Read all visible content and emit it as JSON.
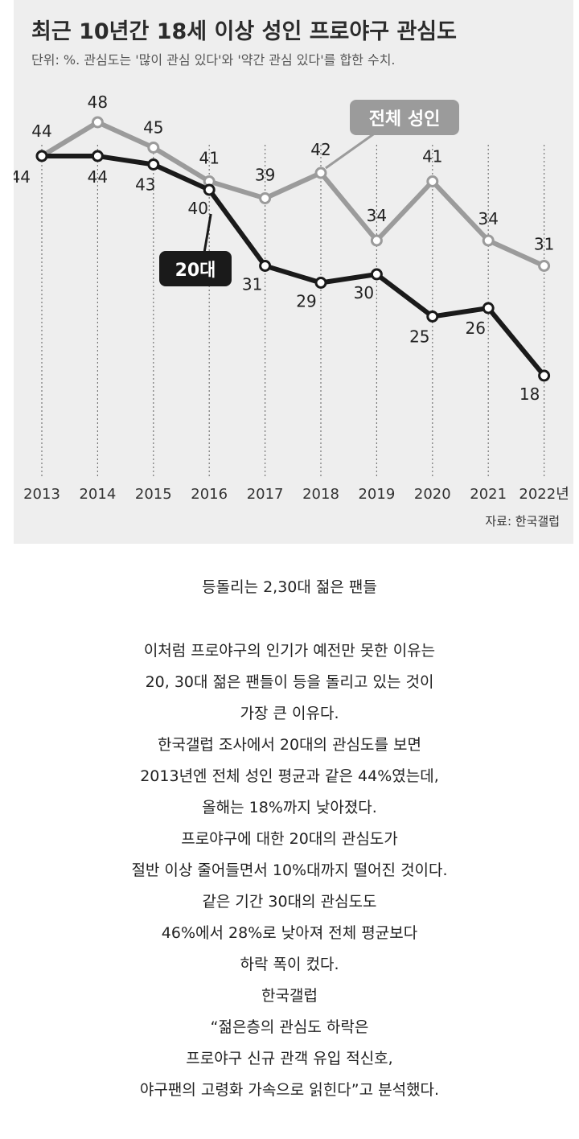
{
  "chart_data": {
    "type": "line",
    "title": "최근 10년간 18세 이상 성인 프로야구 관심도",
    "subtitle": "단위: %. 관심도는 '많이 관심 있다'와 '약간 관심 있다'를 합한 수치.",
    "categories": [
      "2013",
      "2014",
      "2015",
      "2016",
      "2017",
      "2018",
      "2019",
      "2020",
      "2021",
      "2022년"
    ],
    "series": [
      {
        "name": "전체 성인",
        "color": "#9b9b9b",
        "values": [
          44,
          48,
          45,
          41,
          39,
          42,
          34,
          41,
          34,
          31
        ]
      },
      {
        "name": "20대",
        "color": "#1a1a1a",
        "values": [
          44,
          44,
          43,
          40,
          31,
          29,
          30,
          25,
          26,
          18
        ]
      }
    ],
    "ylim": [
      12,
      52
    ],
    "source": "자료: 한국갤럽",
    "grid": true
  },
  "article": {
    "subhead": "등돌리는 2,30대 젊은 팬들",
    "lines": [
      "이처럼 프로야구의 인기가 예전만 못한 이유는",
      "20, 30대 젊은 팬들이 등을 돌리고 있는 것이",
      "가장 큰 이유다.",
      "한국갤럽 조사에서 20대의 관심도를 보면",
      "2013년엔 전체 성인 평균과 같은 44%였는데,",
      "올해는 18%까지 낮아졌다.",
      "프로야구에 대한 20대의 관심도가",
      "절반 이상 줄어들면서 10%대까지 떨어진 것이다.",
      "같은 기간 30대의 관심도도",
      "46%에서 28%로 낮아져 전체 평균보다",
      "하락 폭이 컸다.",
      "한국갤럽",
      "“젊은층의 관심도 하락은",
      "프로야구 신규 관객 유입 적신호,",
      "야구팬의 고령화 가속으로 읽힌다”고 분석했다."
    ]
  }
}
